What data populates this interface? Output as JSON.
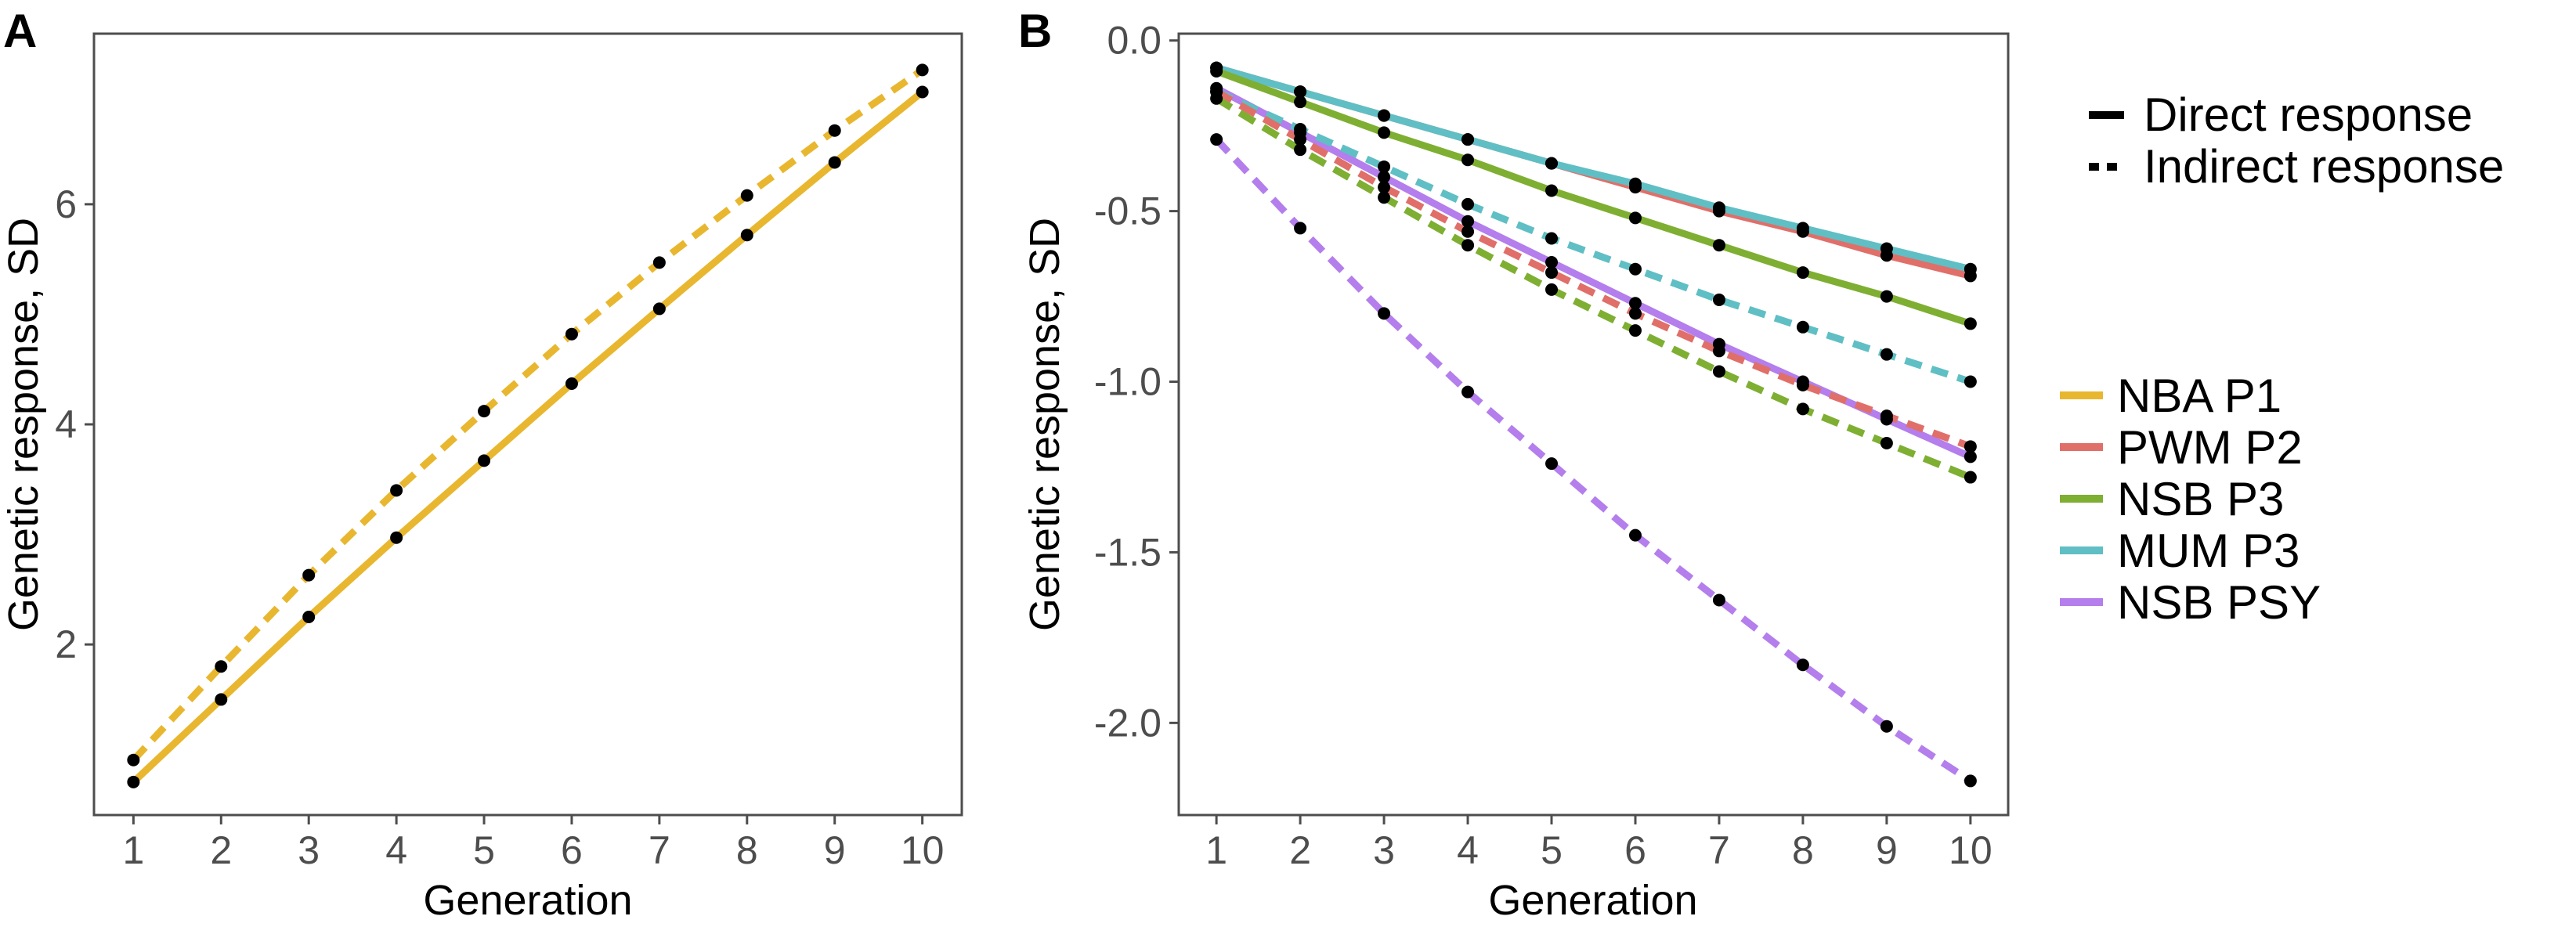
{
  "chart_data": [
    {
      "panel": "A",
      "type": "line",
      "xlabel": "Generation",
      "ylabel": "Genetic response, SD",
      "xlim": [
        0.55,
        10.45
      ],
      "ylim": [
        0.45,
        7.55
      ],
      "xticks": [
        1,
        2,
        3,
        4,
        5,
        6,
        7,
        8,
        9,
        10
      ],
      "yticks": [
        2,
        4,
        6
      ],
      "x": [
        1,
        2,
        3,
        4,
        5,
        6,
        7,
        8,
        9,
        10
      ],
      "series": [
        {
          "name": "NBA P1",
          "response": "Direct response",
          "color": "#E8B72F",
          "values": [
            0.75,
            1.5,
            2.25,
            2.97,
            3.67,
            4.37,
            5.05,
            5.72,
            6.38,
            7.02
          ]
        },
        {
          "name": "NBA P1",
          "response": "Indirect response",
          "color": "#E8B72F",
          "values": [
            0.95,
            1.8,
            2.63,
            3.4,
            4.12,
            4.82,
            5.47,
            6.08,
            6.67,
            7.22
          ]
        }
      ]
    },
    {
      "panel": "B",
      "type": "line",
      "xlabel": "Generation",
      "ylabel": "Genetic response, SD",
      "xlim": [
        0.55,
        10.45
      ],
      "ylim": [
        -2.27,
        0.02
      ],
      "xticks": [
        1,
        2,
        3,
        4,
        5,
        6,
        7,
        8,
        9,
        10
      ],
      "yticks": [
        0.0,
        -0.5,
        -1.0,
        -1.5,
        -2.0
      ],
      "ytick_labels": [
        "0.0",
        "-0.5",
        "-1.0",
        "-1.5",
        "-2.0"
      ],
      "x": [
        1,
        2,
        3,
        4,
        5,
        6,
        7,
        8,
        9,
        10
      ],
      "series": [
        {
          "name": "PWM P2",
          "response": "Direct response",
          "color": "#E06F69",
          "values": [
            -0.08,
            -0.15,
            -0.22,
            -0.29,
            -0.36,
            -0.43,
            -0.5,
            -0.56,
            -0.63,
            -0.69
          ]
        },
        {
          "name": "MUM P3",
          "response": "Direct response",
          "color": "#5FBFC4",
          "values": [
            -0.08,
            -0.15,
            -0.22,
            -0.29,
            -0.36,
            -0.42,
            -0.49,
            -0.55,
            -0.61,
            -0.67
          ]
        },
        {
          "name": "NSB P3",
          "response": "Direct response",
          "color": "#7EAF32",
          "values": [
            -0.09,
            -0.18,
            -0.27,
            -0.35,
            -0.44,
            -0.52,
            -0.6,
            -0.68,
            -0.75,
            -0.83
          ]
        },
        {
          "name": "NSB PSY",
          "response": "Direct response",
          "color": "#B47EEC",
          "values": [
            -0.14,
            -0.27,
            -0.4,
            -0.53,
            -0.65,
            -0.77,
            -0.89,
            -1.0,
            -1.11,
            -1.22
          ]
        },
        {
          "name": "MUM P3",
          "response": "Indirect response",
          "color": "#5FBFC4",
          "values": [
            -0.15,
            -0.26,
            -0.37,
            -0.48,
            -0.58,
            -0.67,
            -0.76,
            -0.84,
            -0.92,
            -1.0
          ]
        },
        {
          "name": "PWM P2",
          "response": "Indirect response",
          "color": "#E06F69",
          "values": [
            -0.15,
            -0.29,
            -0.43,
            -0.56,
            -0.68,
            -0.8,
            -0.91,
            -1.01,
            -1.1,
            -1.19
          ]
        },
        {
          "name": "NSB P3",
          "response": "Indirect response",
          "color": "#7EAF32",
          "values": [
            -0.17,
            -0.32,
            -0.46,
            -0.6,
            -0.73,
            -0.85,
            -0.97,
            -1.08,
            -1.18,
            -1.28
          ]
        },
        {
          "name": "NSB PSY",
          "response": "Indirect response",
          "color": "#B47EEC",
          "values": [
            -0.29,
            -0.55,
            -0.8,
            -1.03,
            -1.24,
            -1.45,
            -1.64,
            -1.83,
            -2.01,
            -2.17
          ]
        }
      ]
    }
  ],
  "legend": {
    "linetype": [
      {
        "label": "Direct response",
        "style": "solid"
      },
      {
        "label": "Indirect response",
        "style": "dashed"
      }
    ],
    "breeds": [
      {
        "label": "NBA P1",
        "color": "#E8B72F"
      },
      {
        "label": "PWM P2",
        "color": "#E06F69"
      },
      {
        "label": "NSB P3",
        "color": "#7EAF32"
      },
      {
        "label": "MUM P3",
        "color": "#5FBFC4"
      },
      {
        "label": "NSB PSY",
        "color": "#B47EEC"
      }
    ]
  }
}
